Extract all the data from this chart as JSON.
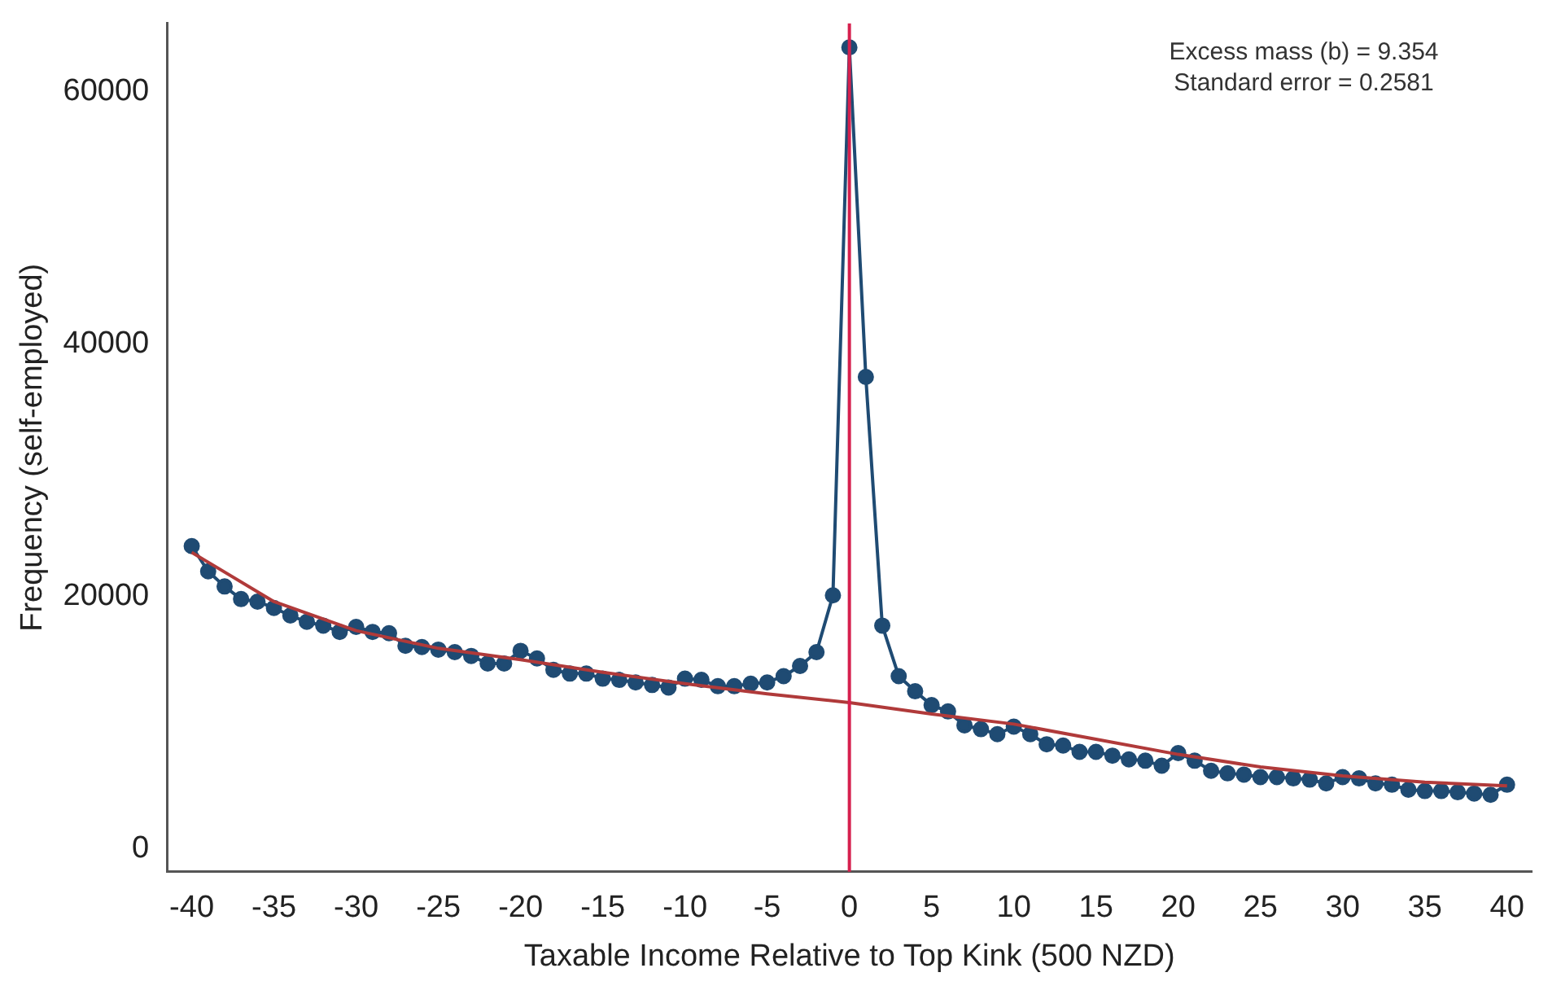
{
  "chart_data": {
    "type": "line",
    "xlabel": "Taxable Income Relative to Top Kink (500 NZD)",
    "ylabel": "Frequency (self-employed)",
    "annotations": [
      "Excess mass (b) = 9.354",
      "Standard error = 0.2581"
    ],
    "xlim": [
      -41.5,
      41.5
    ],
    "xticks": [
      -40,
      -35,
      -30,
      -25,
      -20,
      -15,
      -10,
      -5,
      0,
      5,
      10,
      15,
      20,
      25,
      30,
      35,
      40
    ],
    "ylim": [
      -1800,
      65400
    ],
    "yticks": [
      0,
      20000,
      40000,
      60000
    ],
    "grid": false,
    "legend": false,
    "ref_lines": [
      {
        "axis": "x",
        "value": 0,
        "color": "#d6204e"
      }
    ],
    "series": [
      {
        "color": "#1f4b73",
        "marker": "circle",
        "x": [
          -40,
          -39,
          -38,
          -37,
          -36,
          -35,
          -34,
          -33,
          -32,
          -31,
          -30,
          -29,
          -28,
          -27,
          -26,
          -25,
          -24,
          -23,
          -22,
          -21,
          -20,
          -19,
          -18,
          -17,
          -16,
          -15,
          -14,
          -13,
          -12,
          -11,
          -10,
          -9,
          -8,
          -7,
          -6,
          -5,
          -4,
          -3,
          -2,
          -1,
          0,
          1,
          2,
          3,
          4,
          5,
          6,
          7,
          8,
          9,
          10,
          11,
          12,
          13,
          14,
          15,
          16,
          17,
          18,
          19,
          20,
          21,
          22,
          23,
          24,
          25,
          26,
          27,
          28,
          29,
          30,
          31,
          32,
          33,
          34,
          35,
          36,
          37,
          38,
          39,
          40
        ],
        "values": [
          24000,
          22000,
          20800,
          19800,
          19600,
          19100,
          18500,
          18000,
          17700,
          17200,
          17600,
          17200,
          17100,
          16100,
          16000,
          15800,
          15600,
          15300,
          14700,
          14700,
          15700,
          15100,
          14200,
          13900,
          13900,
          13500,
          13400,
          13200,
          13000,
          12800,
          13500,
          13400,
          12900,
          12900,
          13100,
          13200,
          13700,
          14500,
          15600,
          20100,
          63500,
          37400,
          17700,
          13700,
          12500,
          11400,
          10900,
          9800,
          9500,
          9100,
          9700,
          9100,
          8300,
          8200,
          7700,
          7700,
          7400,
          7100,
          7000,
          6600,
          7600,
          7000,
          6200,
          6000,
          5900,
          5700,
          5700,
          5600,
          5500,
          5200,
          5700,
          5600,
          5200,
          5100,
          4700,
          4600,
          4600,
          4500,
          4400,
          4300,
          5100
        ]
      },
      {
        "color": "#b03a3a",
        "marker": "none",
        "x": [
          -40,
          -35,
          -30,
          -25,
          -20,
          -15,
          -10,
          -5,
          0,
          5,
          10,
          15,
          20,
          25,
          30,
          35,
          40
        ],
        "values": [
          23500,
          19600,
          17300,
          15900,
          15000,
          14000,
          13100,
          12300,
          11600,
          10700,
          9900,
          8700,
          7500,
          6500,
          5800,
          5300,
          5000
        ]
      }
    ]
  }
}
